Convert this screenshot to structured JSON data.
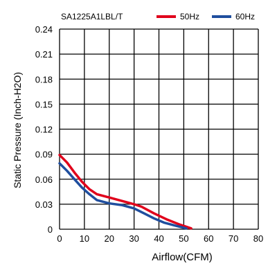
{
  "header": {
    "model": "SA1225A1LBL/T"
  },
  "legend": {
    "placement": "top-right",
    "items": [
      {
        "label": "50Hz",
        "color": "#e0001b"
      },
      {
        "label": "60Hz",
        "color": "#1f4e9e"
      }
    ]
  },
  "chart_data": {
    "type": "line",
    "title": "SA1225A1LBL/T",
    "xlabel": "Airflow(CFM)",
    "ylabel": "Static Pressure (Inch-H2O)",
    "xlim": [
      0,
      80
    ],
    "ylim": [
      0,
      0.24
    ],
    "grid": true,
    "x_ticks": [
      "0",
      "10",
      "20",
      "30",
      "40",
      "50",
      "60",
      "70",
      "80"
    ],
    "y_ticks": [
      "0",
      "0.03",
      "0.06",
      "0.09",
      "0.12",
      "0.15",
      "0.18",
      "0.21",
      "0.24"
    ],
    "series": [
      {
        "name": "50Hz",
        "color": "#e0001b",
        "points": [
          [
            0,
            0.089
          ],
          [
            3,
            0.08
          ],
          [
            6,
            0.068
          ],
          [
            9,
            0.057
          ],
          [
            12,
            0.048
          ],
          [
            15,
            0.042
          ],
          [
            20,
            0.038
          ],
          [
            25,
            0.034
          ],
          [
            30,
            0.03
          ],
          [
            33,
            0.027
          ],
          [
            38,
            0.019
          ],
          [
            43,
            0.012
          ],
          [
            48,
            0.006
          ],
          [
            53,
            0.001
          ]
        ]
      },
      {
        "name": "60Hz",
        "color": "#1f4e9e",
        "points": [
          [
            0,
            0.079
          ],
          [
            3,
            0.07
          ],
          [
            6,
            0.06
          ],
          [
            9,
            0.05
          ],
          [
            12,
            0.042
          ],
          [
            15,
            0.035
          ],
          [
            20,
            0.031
          ],
          [
            25,
            0.029
          ],
          [
            30,
            0.025
          ],
          [
            34,
            0.019
          ],
          [
            38,
            0.013
          ],
          [
            42,
            0.008
          ],
          [
            47,
            0.004
          ],
          [
            51,
            0.001
          ]
        ]
      }
    ]
  }
}
